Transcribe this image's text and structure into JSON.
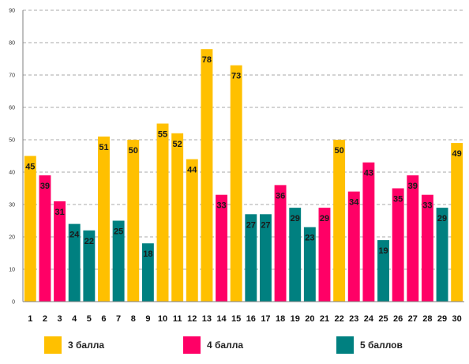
{
  "chart_data": {
    "type": "bar",
    "categories": [
      "1",
      "2",
      "3",
      "4",
      "5",
      "6",
      "7",
      "8",
      "9",
      "10",
      "11",
      "12",
      "13",
      "14",
      "15",
      "16",
      "17",
      "18",
      "19",
      "20",
      "21",
      "22",
      "23",
      "24",
      "25",
      "26",
      "27",
      "28",
      "29",
      "30"
    ],
    "values": [
      45,
      39,
      31,
      24,
      22,
      51,
      25,
      50,
      18,
      55,
      52,
      44,
      78,
      33,
      73,
      27,
      27,
      36,
      29,
      23,
      29,
      50,
      34,
      43,
      19,
      35,
      39,
      33,
      29,
      49
    ],
    "groups": [
      "3",
      "4",
      "4",
      "5",
      "5",
      "3",
      "5",
      "3",
      "5",
      "3",
      "3",
      "3",
      "3",
      "4",
      "3",
      "5",
      "5",
      "4",
      "5",
      "5",
      "4",
      "3",
      "4",
      "4",
      "5",
      "4",
      "4",
      "4",
      "5",
      "3"
    ],
    "ylim": [
      0,
      90
    ],
    "yticks": [
      "0",
      "10",
      "20",
      "30",
      "40",
      "50",
      "60",
      "70",
      "80",
      "90"
    ],
    "grid": true,
    "legend_position": "bottom",
    "series": [
      {
        "key": "3",
        "name": "3 балла",
        "color": "#FFC000"
      },
      {
        "key": "4",
        "name": "4 балла",
        "color": "#FF0066"
      },
      {
        "key": "5",
        "name": "5 баллов",
        "color": "#008080"
      }
    ]
  }
}
